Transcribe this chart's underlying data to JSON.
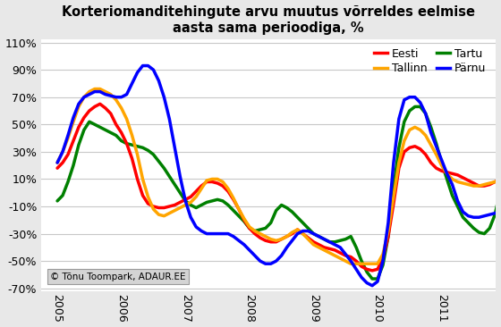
{
  "title": "Korteriomanditehingute arvu muutus võrreldes eelmise\naasta sama perioodiga, %",
  "background_color": "#e8e8e8",
  "plot_background": "#ffffff",
  "colors": {
    "Eesti": "#ff0000",
    "Tallinn": "#ffa500",
    "Tartu": "#008000",
    "Pärnu": "#0000ff"
  },
  "watermark": "© Tõnu Toompark, ADAUR.EE",
  "ylim": [
    -0.72,
    1.12
  ],
  "yticks": [
    -0.7,
    -0.5,
    -0.3,
    -0.1,
    0.1,
    0.3,
    0.5,
    0.7,
    0.9,
    1.1
  ],
  "xlim_start": 2004.75,
  "xlim_end": 2011.85,
  "year_ticks": [
    2005,
    2006,
    2007,
    2008,
    2009,
    2010,
    2011
  ],
  "data": {
    "t": [
      0,
      1,
      2,
      3,
      4,
      5,
      6,
      7,
      8,
      9,
      10,
      11,
      12,
      13,
      14,
      15,
      16,
      17,
      18,
      19,
      20,
      21,
      22,
      23,
      24,
      25,
      26,
      27,
      28,
      29,
      30,
      31,
      32,
      33,
      34,
      35,
      36,
      37,
      38,
      39,
      40,
      41,
      42,
      43,
      44,
      45,
      46,
      47,
      48,
      49,
      50,
      51,
      52,
      53,
      54,
      55,
      56,
      57,
      58,
      59,
      60,
      61,
      62,
      63,
      64,
      65,
      66,
      67,
      68,
      69,
      70,
      71,
      72,
      73,
      74,
      75,
      76,
      77,
      78,
      79,
      80,
      81,
      82,
      83
    ],
    "Eesti": [
      0.18,
      0.22,
      0.28,
      0.38,
      0.48,
      0.55,
      0.6,
      0.63,
      0.65,
      0.62,
      0.58,
      0.5,
      0.44,
      0.36,
      0.25,
      0.1,
      -0.02,
      -0.08,
      -0.1,
      -0.11,
      -0.11,
      -0.1,
      -0.09,
      -0.07,
      -0.05,
      -0.03,
      0.01,
      0.05,
      0.08,
      0.08,
      0.07,
      0.05,
      0.01,
      -0.05,
      -0.12,
      -0.2,
      -0.26,
      -0.3,
      -0.33,
      -0.35,
      -0.36,
      -0.36,
      -0.34,
      -0.32,
      -0.3,
      -0.27,
      -0.3,
      -0.33,
      -0.36,
      -0.38,
      -0.4,
      -0.41,
      -0.42,
      -0.44,
      -0.46,
      -0.47,
      -0.5,
      -0.54,
      -0.56,
      -0.57,
      -0.56,
      -0.48,
      -0.32,
      -0.08,
      0.18,
      0.3,
      0.33,
      0.34,
      0.32,
      0.28,
      0.22,
      0.18,
      0.16,
      0.15,
      0.14,
      0.13,
      0.11,
      0.09,
      0.07,
      0.05,
      0.05,
      0.06,
      0.08,
      0.1
    ],
    "Tallinn": [
      0.22,
      0.3,
      0.4,
      0.52,
      0.63,
      0.7,
      0.74,
      0.76,
      0.76,
      0.74,
      0.72,
      0.68,
      0.62,
      0.54,
      0.42,
      0.28,
      0.1,
      -0.03,
      -0.12,
      -0.16,
      -0.17,
      -0.15,
      -0.13,
      -0.11,
      -0.09,
      -0.07,
      -0.03,
      0.03,
      0.09,
      0.1,
      0.1,
      0.08,
      0.03,
      -0.04,
      -0.12,
      -0.19,
      -0.25,
      -0.28,
      -0.3,
      -0.32,
      -0.34,
      -0.35,
      -0.34,
      -0.32,
      -0.29,
      -0.27,
      -0.3,
      -0.34,
      -0.38,
      -0.4,
      -0.42,
      -0.44,
      -0.46,
      -0.48,
      -0.5,
      -0.52,
      -0.52,
      -0.52,
      -0.52,
      -0.52,
      -0.52,
      -0.45,
      -0.28,
      -0.03,
      0.22,
      0.38,
      0.46,
      0.48,
      0.46,
      0.42,
      0.35,
      0.28,
      0.2,
      0.14,
      0.1,
      0.08,
      0.07,
      0.06,
      0.05,
      0.05,
      0.06,
      0.07,
      0.08,
      0.09
    ],
    "Tartu": [
      -0.06,
      -0.02,
      0.08,
      0.2,
      0.35,
      0.46,
      0.52,
      0.5,
      0.48,
      0.46,
      0.44,
      0.42,
      0.38,
      0.36,
      0.35,
      0.34,
      0.33,
      0.31,
      0.28,
      0.23,
      0.18,
      0.12,
      0.06,
      0.0,
      -0.06,
      -0.09,
      -0.11,
      -0.09,
      -0.07,
      -0.06,
      -0.05,
      -0.06,
      -0.09,
      -0.13,
      -0.17,
      -0.21,
      -0.26,
      -0.28,
      -0.27,
      -0.26,
      -0.22,
      -0.13,
      -0.09,
      -0.11,
      -0.14,
      -0.18,
      -0.22,
      -0.26,
      -0.3,
      -0.32,
      -0.34,
      -0.36,
      -0.36,
      -0.35,
      -0.34,
      -0.32,
      -0.4,
      -0.5,
      -0.58,
      -0.63,
      -0.63,
      -0.53,
      -0.32,
      0.03,
      0.33,
      0.52,
      0.6,
      0.63,
      0.63,
      0.58,
      0.48,
      0.36,
      0.22,
      0.1,
      -0.02,
      -0.1,
      -0.18,
      -0.22,
      -0.26,
      -0.29,
      -0.3,
      -0.26,
      -0.16,
      0.02
    ],
    "Pärnu": [
      0.22,
      0.3,
      0.42,
      0.55,
      0.65,
      0.7,
      0.72,
      0.74,
      0.74,
      0.72,
      0.71,
      0.7,
      0.7,
      0.72,
      0.8,
      0.88,
      0.93,
      0.93,
      0.9,
      0.82,
      0.7,
      0.54,
      0.33,
      0.12,
      -0.06,
      -0.18,
      -0.25,
      -0.28,
      -0.3,
      -0.3,
      -0.3,
      -0.3,
      -0.3,
      -0.32,
      -0.35,
      -0.38,
      -0.42,
      -0.46,
      -0.5,
      -0.52,
      -0.52,
      -0.5,
      -0.46,
      -0.4,
      -0.35,
      -0.3,
      -0.28,
      -0.28,
      -0.3,
      -0.32,
      -0.34,
      -0.36,
      -0.38,
      -0.4,
      -0.45,
      -0.5,
      -0.56,
      -0.62,
      -0.66,
      -0.68,
      -0.65,
      -0.5,
      -0.22,
      0.22,
      0.54,
      0.68,
      0.7,
      0.7,
      0.66,
      0.58,
      0.44,
      0.34,
      0.24,
      0.14,
      0.06,
      -0.06,
      -0.14,
      -0.17,
      -0.18,
      -0.18,
      -0.17,
      -0.16,
      -0.15,
      -0.13
    ]
  }
}
